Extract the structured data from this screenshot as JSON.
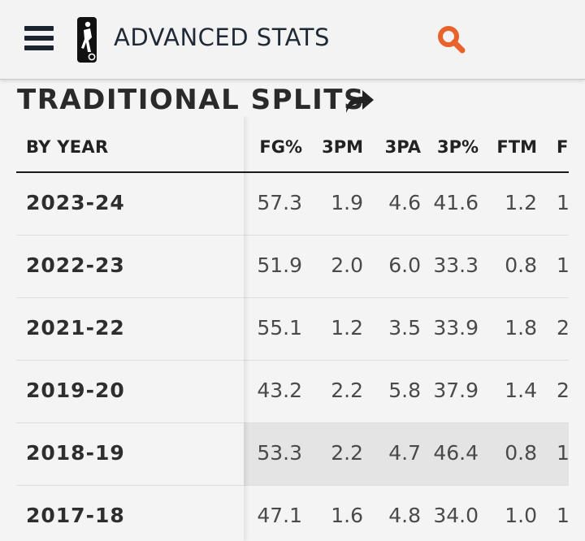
{
  "header": {
    "title": "ADVANCED STATS",
    "menu_icon": "hamburger-menu-icon",
    "logo_icon": "league-logo-icon",
    "search_icon": "search-icon",
    "search_color": "#e8622a"
  },
  "section": {
    "title": "TRADITIONAL SPLITS",
    "share_icon": "share-arrow-icon"
  },
  "table": {
    "first_column_header": "BY YEAR",
    "columns": [
      "FG%",
      "3PM",
      "3PA",
      "3P%",
      "FTM",
      "F"
    ],
    "rows": [
      {
        "year": "2023-24",
        "values": [
          "57.3",
          "1.9",
          "4.6",
          "41.6",
          "1.2",
          "1"
        ]
      },
      {
        "year": "2022-23",
        "values": [
          "51.9",
          "2.0",
          "6.0",
          "33.3",
          "0.8",
          "1"
        ]
      },
      {
        "year": "2021-22",
        "values": [
          "55.1",
          "1.2",
          "3.5",
          "33.9",
          "1.8",
          "2"
        ]
      },
      {
        "year": "2019-20",
        "values": [
          "43.2",
          "2.2",
          "5.8",
          "37.9",
          "1.4",
          "2"
        ]
      },
      {
        "year": "2018-19",
        "values": [
          "53.3",
          "2.2",
          "4.7",
          "46.4",
          "0.8",
          "1"
        ]
      },
      {
        "year": "2017-18",
        "values": [
          "47.1",
          "1.6",
          "4.8",
          "34.0",
          "1.0",
          "1"
        ]
      }
    ],
    "highlighted_row_index": 4
  }
}
